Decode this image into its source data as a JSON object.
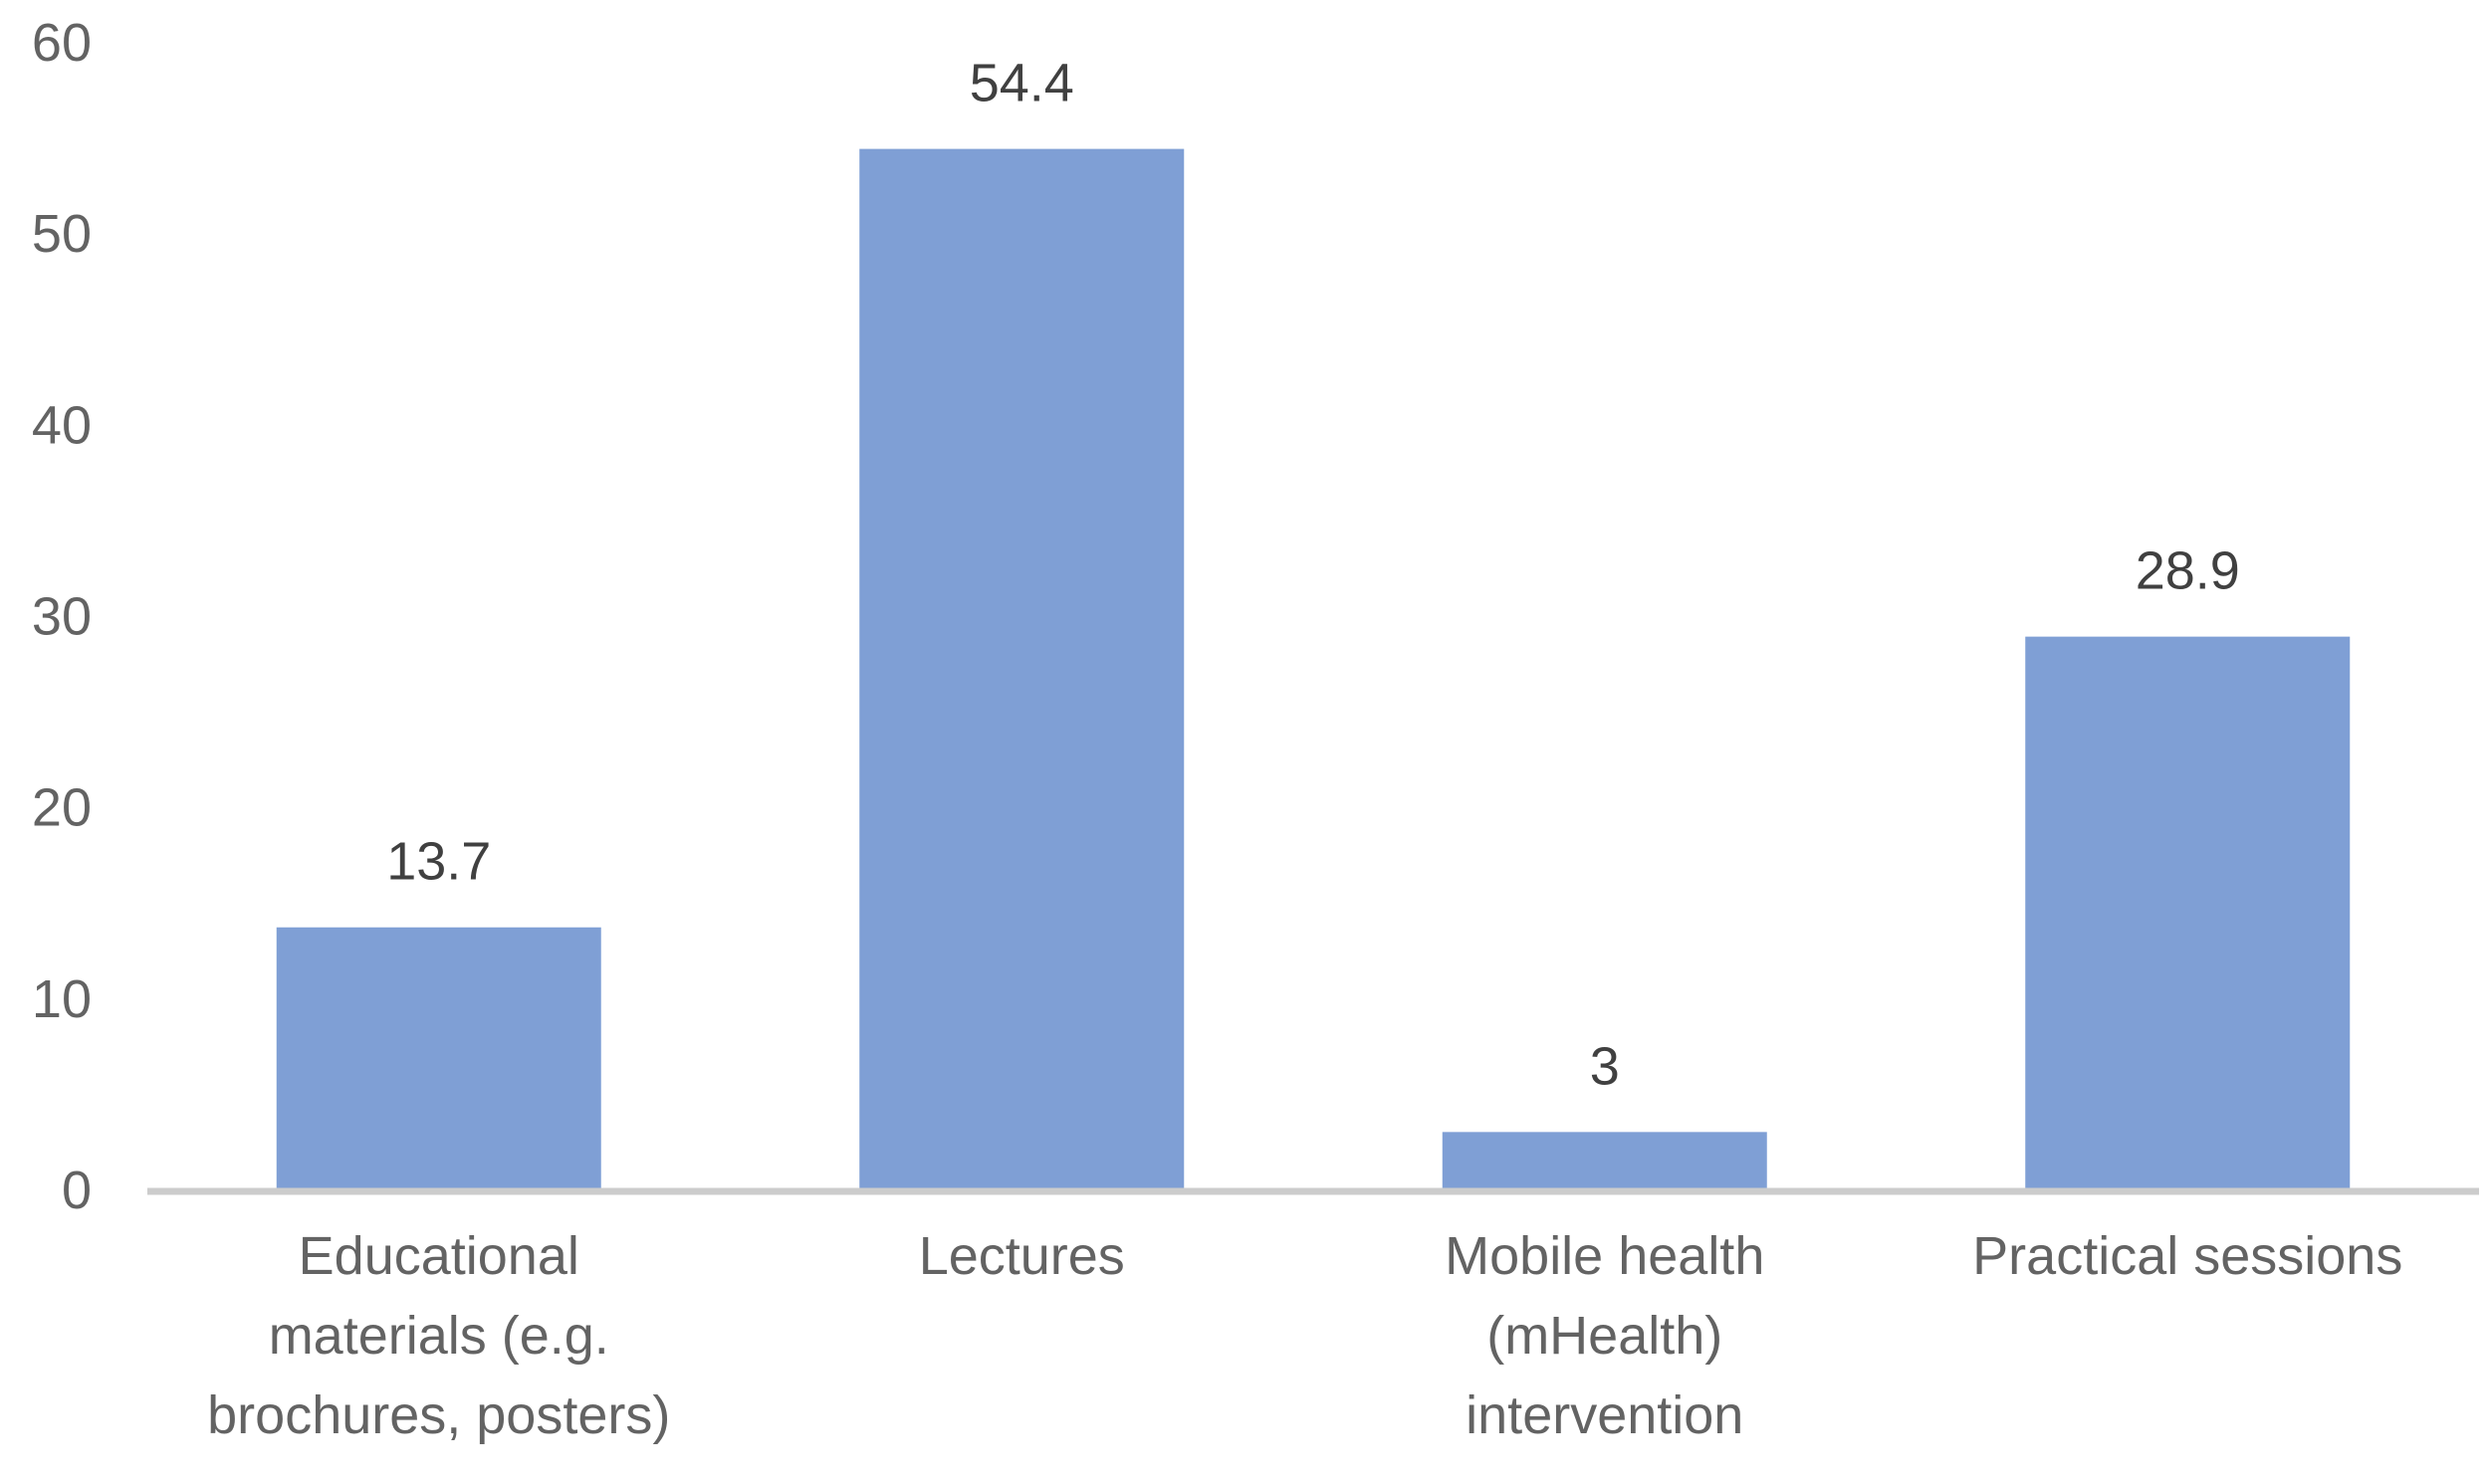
{
  "chart_data": {
    "type": "bar",
    "title": "",
    "xlabel": "",
    "ylabel": "",
    "categories": [
      [
        "Educational",
        "materials (e.g.",
        "brochures, posters)"
      ],
      [
        "Lectures"
      ],
      [
        "Mobile health",
        "(mHealth)",
        "intervention"
      ],
      [
        "Practical sessions"
      ]
    ],
    "values": [
      13.7,
      54.4,
      3,
      28.9
    ],
    "value_labels": [
      "13.7",
      "54.4",
      "3",
      "28.9"
    ],
    "ylim": [
      0,
      60
    ],
    "yticks": [
      0,
      10,
      20,
      30,
      40,
      50,
      60
    ],
    "grid": false,
    "legend": "none",
    "colors": {
      "bar": "#7f9fd5",
      "axis": "#cccccc",
      "tick_text": "#636363",
      "label_text": "#404040"
    }
  }
}
